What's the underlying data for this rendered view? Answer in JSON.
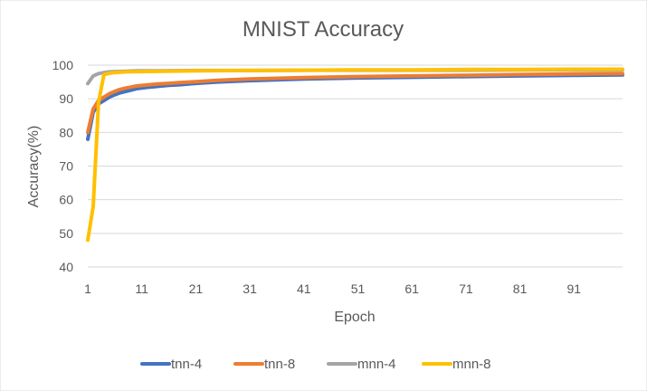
{
  "chart_data": {
    "type": "line",
    "title": "MNIST Accuracy",
    "xlabel": "Epoch",
    "ylabel": "Accuracy(%)",
    "ylim": [
      40,
      100
    ],
    "yticks": [
      40,
      50,
      60,
      70,
      80,
      90,
      100
    ],
    "xlim": [
      1,
      100
    ],
    "xticks": [
      1,
      11,
      21,
      31,
      41,
      51,
      61,
      71,
      81,
      91
    ],
    "grid": "horizontal",
    "legend": "bottom",
    "series": [
      {
        "name": "tnn-4",
        "color": "#4472C4",
        "x": [
          1,
          2,
          3,
          4,
          5,
          6,
          7,
          8,
          9,
          10,
          12,
          14,
          16,
          18,
          21,
          25,
          31,
          41,
          51,
          61,
          71,
          81,
          91,
          100
        ],
        "values": [
          78,
          86,
          88.5,
          89.5,
          90.5,
          91.2,
          91.8,
          92.2,
          92.6,
          93.0,
          93.4,
          93.7,
          94.0,
          94.2,
          94.6,
          95.0,
          95.4,
          95.9,
          96.2,
          96.4,
          96.6,
          96.8,
          97.0,
          97.1
        ]
      },
      {
        "name": "tnn-8",
        "color": "#ED7D31",
        "x": [
          1,
          2,
          3,
          4,
          5,
          6,
          7,
          8,
          9,
          10,
          12,
          14,
          16,
          18,
          21,
          25,
          31,
          41,
          51,
          61,
          71,
          81,
          91,
          100
        ],
        "values": [
          80,
          87,
          89.5,
          90.5,
          91.5,
          92.2,
          92.8,
          93.2,
          93.5,
          93.8,
          94.1,
          94.4,
          94.6,
          94.8,
          95.1,
          95.5,
          95.9,
          96.3,
          96.6,
          96.8,
          97.0,
          97.2,
          97.4,
          97.5
        ]
      },
      {
        "name": "mnn-4",
        "color": "#A5A5A5",
        "x": [
          1,
          2,
          3,
          4,
          5,
          6,
          8,
          10,
          15,
          21,
          31,
          41,
          51,
          61,
          71,
          81,
          91,
          100
        ],
        "values": [
          94.5,
          96.8,
          97.5,
          97.8,
          98.0,
          98.1,
          98.2,
          98.3,
          98.3,
          98.4,
          98.4,
          98.5,
          98.5,
          98.5,
          98.5,
          98.6,
          98.6,
          98.6
        ]
      },
      {
        "name": "mnn-8",
        "color": "#FFC000",
        "x": [
          1,
          2,
          3,
          4,
          5,
          6,
          8,
          10,
          15,
          21,
          31,
          41,
          51,
          61,
          71,
          81,
          91,
          100
        ],
        "values": [
          48,
          58,
          89,
          97.2,
          97.6,
          97.8,
          98.0,
          98.1,
          98.2,
          98.3,
          98.4,
          98.5,
          98.6,
          98.6,
          98.7,
          98.7,
          98.8,
          98.8
        ]
      }
    ]
  }
}
